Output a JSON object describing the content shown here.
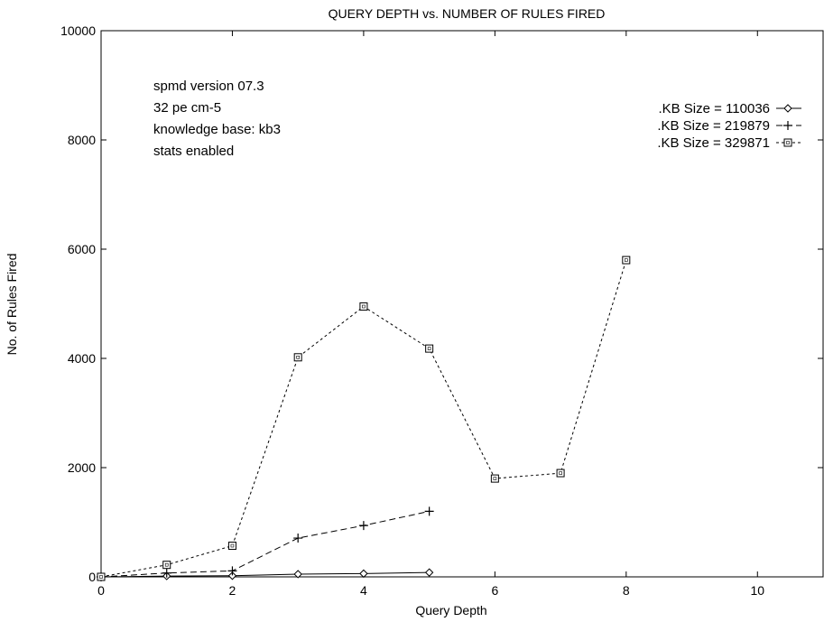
{
  "chart_data": {
    "type": "line",
    "title": "QUERY DEPTH vs. NUMBER OF RULES FIRED",
    "xlabel": "Query Depth",
    "ylabel": "No. of Rules Fired",
    "xlim": [
      0,
      11
    ],
    "ylim": [
      0,
      10000
    ],
    "xticks": [
      0,
      2,
      4,
      6,
      8,
      10
    ],
    "yticks": [
      0,
      2000,
      4000,
      6000,
      8000,
      10000
    ],
    "grid": false,
    "legend_position": "top-right",
    "annotation_lines": [
      "spmd version 07.3",
      "32 pe cm-5",
      "knowledge base: kb3",
      "stats enabled"
    ],
    "series": [
      {
        "name": ".KB Size = 110036",
        "marker": "diamond",
        "dash": "solid",
        "x": [
          0,
          1,
          2,
          3,
          4,
          5
        ],
        "y": [
          0,
          15,
          20,
          50,
          60,
          80
        ]
      },
      {
        "name": ".KB Size = 219879",
        "marker": "plus",
        "dash": "dashed",
        "x": [
          0,
          1,
          2,
          3,
          4,
          5
        ],
        "y": [
          0,
          70,
          110,
          710,
          940,
          1200
        ]
      },
      {
        "name": ".KB Size = 329871",
        "marker": "square",
        "dash": "dotted",
        "x": [
          0,
          1,
          2,
          3,
          4,
          5,
          6,
          7,
          8
        ],
        "y": [
          0,
          220,
          570,
          4020,
          4950,
          4180,
          1800,
          1900,
          5800
        ]
      }
    ]
  }
}
